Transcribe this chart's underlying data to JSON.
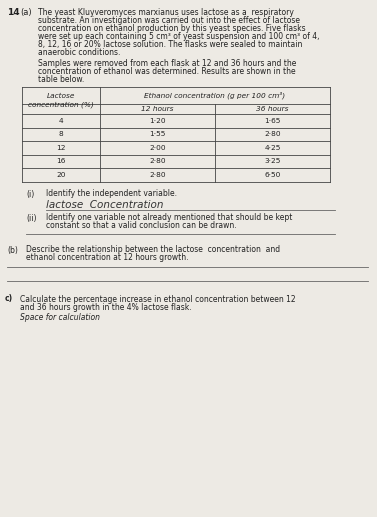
{
  "page_number": "14",
  "background_color": "#edeae4",
  "q_a_label": "(a)",
  "intro_line1": "The yeast Kluyveromyces marxianus uses lactose as a respiratory",
  "intro_line2": "substrate. An investigation was carried out into the effect of lactose",
  "intro_line3": "concentration on ethanol production by this yeast species. Five flasks",
  "intro_line4": "were set up each containing 5 cm³ of yeast suspension and 100 cm³ of 4,",
  "intro_line5": "8, 12, 16 or 20% lactose solution. The flasks were sealed to maintain",
  "intro_line6": "anaerobic conditions.",
  "para2_line1": "Samples were removed from each flask at 12 and 36 hours and the",
  "para2_line2": "concentration of ethanol was determined. Results are shown in the",
  "para2_line3": "table below.",
  "table_header_col1": "Lactose\nconcentration (%)",
  "table_header_col2": "Ethanol concentration (g per 100 cm³)",
  "table_subheader_a": "12 hours",
  "table_subheader_b": "36 hours",
  "table_data": [
    [
      "4",
      "1·20",
      "1·65"
    ],
    [
      "8",
      "1·55",
      "2·80"
    ],
    [
      "12",
      "2·00",
      "4·25"
    ],
    [
      "16",
      "2·80",
      "3·25"
    ],
    [
      "20",
      "2·80",
      "6·50"
    ]
  ],
  "qi_label": "(i)",
  "qi_text": "Identify the independent variable.",
  "qi_answer": "lactose  Concentration",
  "qii_label": "(ii)",
  "qii_text1": "Identify one variable not already mentioned that should be kept",
  "qii_text2": "constant so that a valid conclusion can be drawn.",
  "qb_label": "(b)",
  "qb_text1": "Describe the relationship between the lactose  concentration  and",
  "qb_text2": "ethanol concentration at 12 hours growth.",
  "qc_label": "c)",
  "qc_text1": "Calculate the percentage increase in ethanol concentration between 12",
  "qc_text2": "and 36 hours growth in the 4% lactose flask.",
  "qc_subtext": "Space for calculation",
  "text_color": "#222222",
  "border_color": "#444444",
  "line_color": "#666666",
  "handwriting_color": "#333333"
}
